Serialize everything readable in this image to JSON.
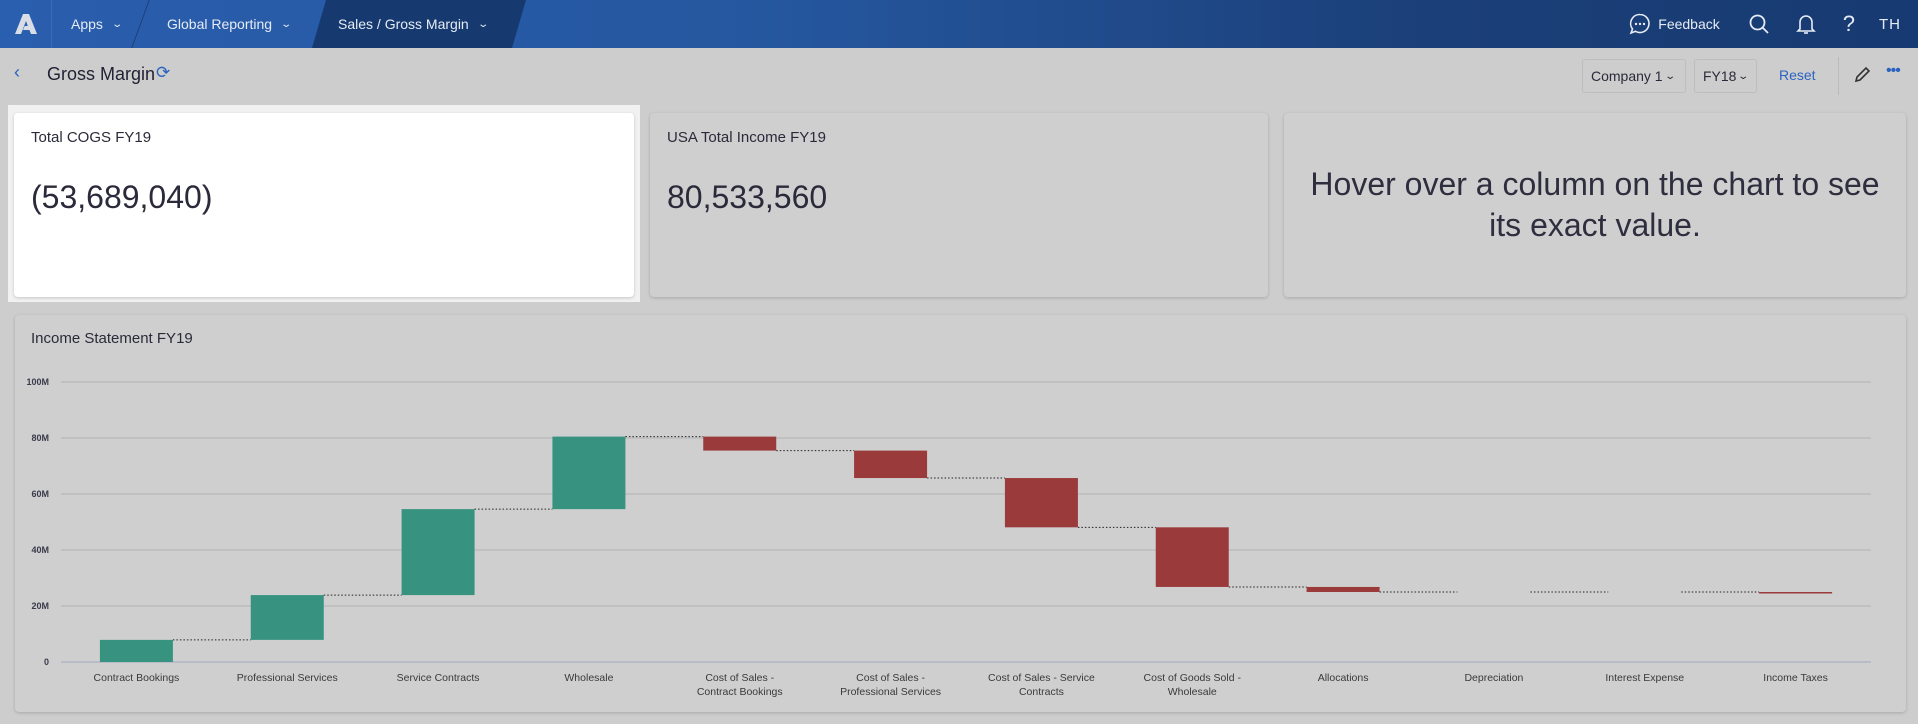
{
  "topbar": {
    "logo": "A",
    "nav": [
      {
        "label": "Apps"
      },
      {
        "label": "Global Reporting"
      },
      {
        "label": "Sales / Gross Margin"
      }
    ],
    "feedback_label": "Feedback",
    "user_initials": "TH"
  },
  "header": {
    "title": "Gross Margin",
    "company_select": "Company 1",
    "year_select": "FY18",
    "reset_label": "Reset"
  },
  "cards": [
    {
      "label": "Total COGS FY19",
      "value": "(53,689,040)"
    },
    {
      "label": "USA Total Income FY19",
      "value": "80,533,560"
    },
    {
      "message": "Hover over a column on the chart to see its exact value."
    }
  ],
  "chart_data": {
    "type": "waterfall",
    "title": "Income Statement FY19",
    "categories": [
      "Contract Bookings",
      "Professional Services",
      "Service Contracts",
      "Wholesale",
      "Cost of Sales - Contract Bookings",
      "Cost of Sales - Professional Services",
      "Cost of Sales - Service Contracts",
      "Cost of Goods Sold - Wholesale",
      "Allocations",
      "Depreciation",
      "Interest Expense",
      "Income Taxes"
    ],
    "values_millions": [
      7.9,
      16.0,
      30.7,
      25.9,
      -5.0,
      -9.8,
      -17.6,
      -21.3,
      -1.8,
      0,
      0,
      -0.3
    ],
    "ylim": [
      0,
      100
    ],
    "yticks": [
      "0",
      "20M",
      "40M",
      "60M",
      "80M",
      "100M"
    ],
    "grid": true,
    "colors": {
      "increase": "#379380",
      "decrease": "#9b3a3a"
    }
  }
}
